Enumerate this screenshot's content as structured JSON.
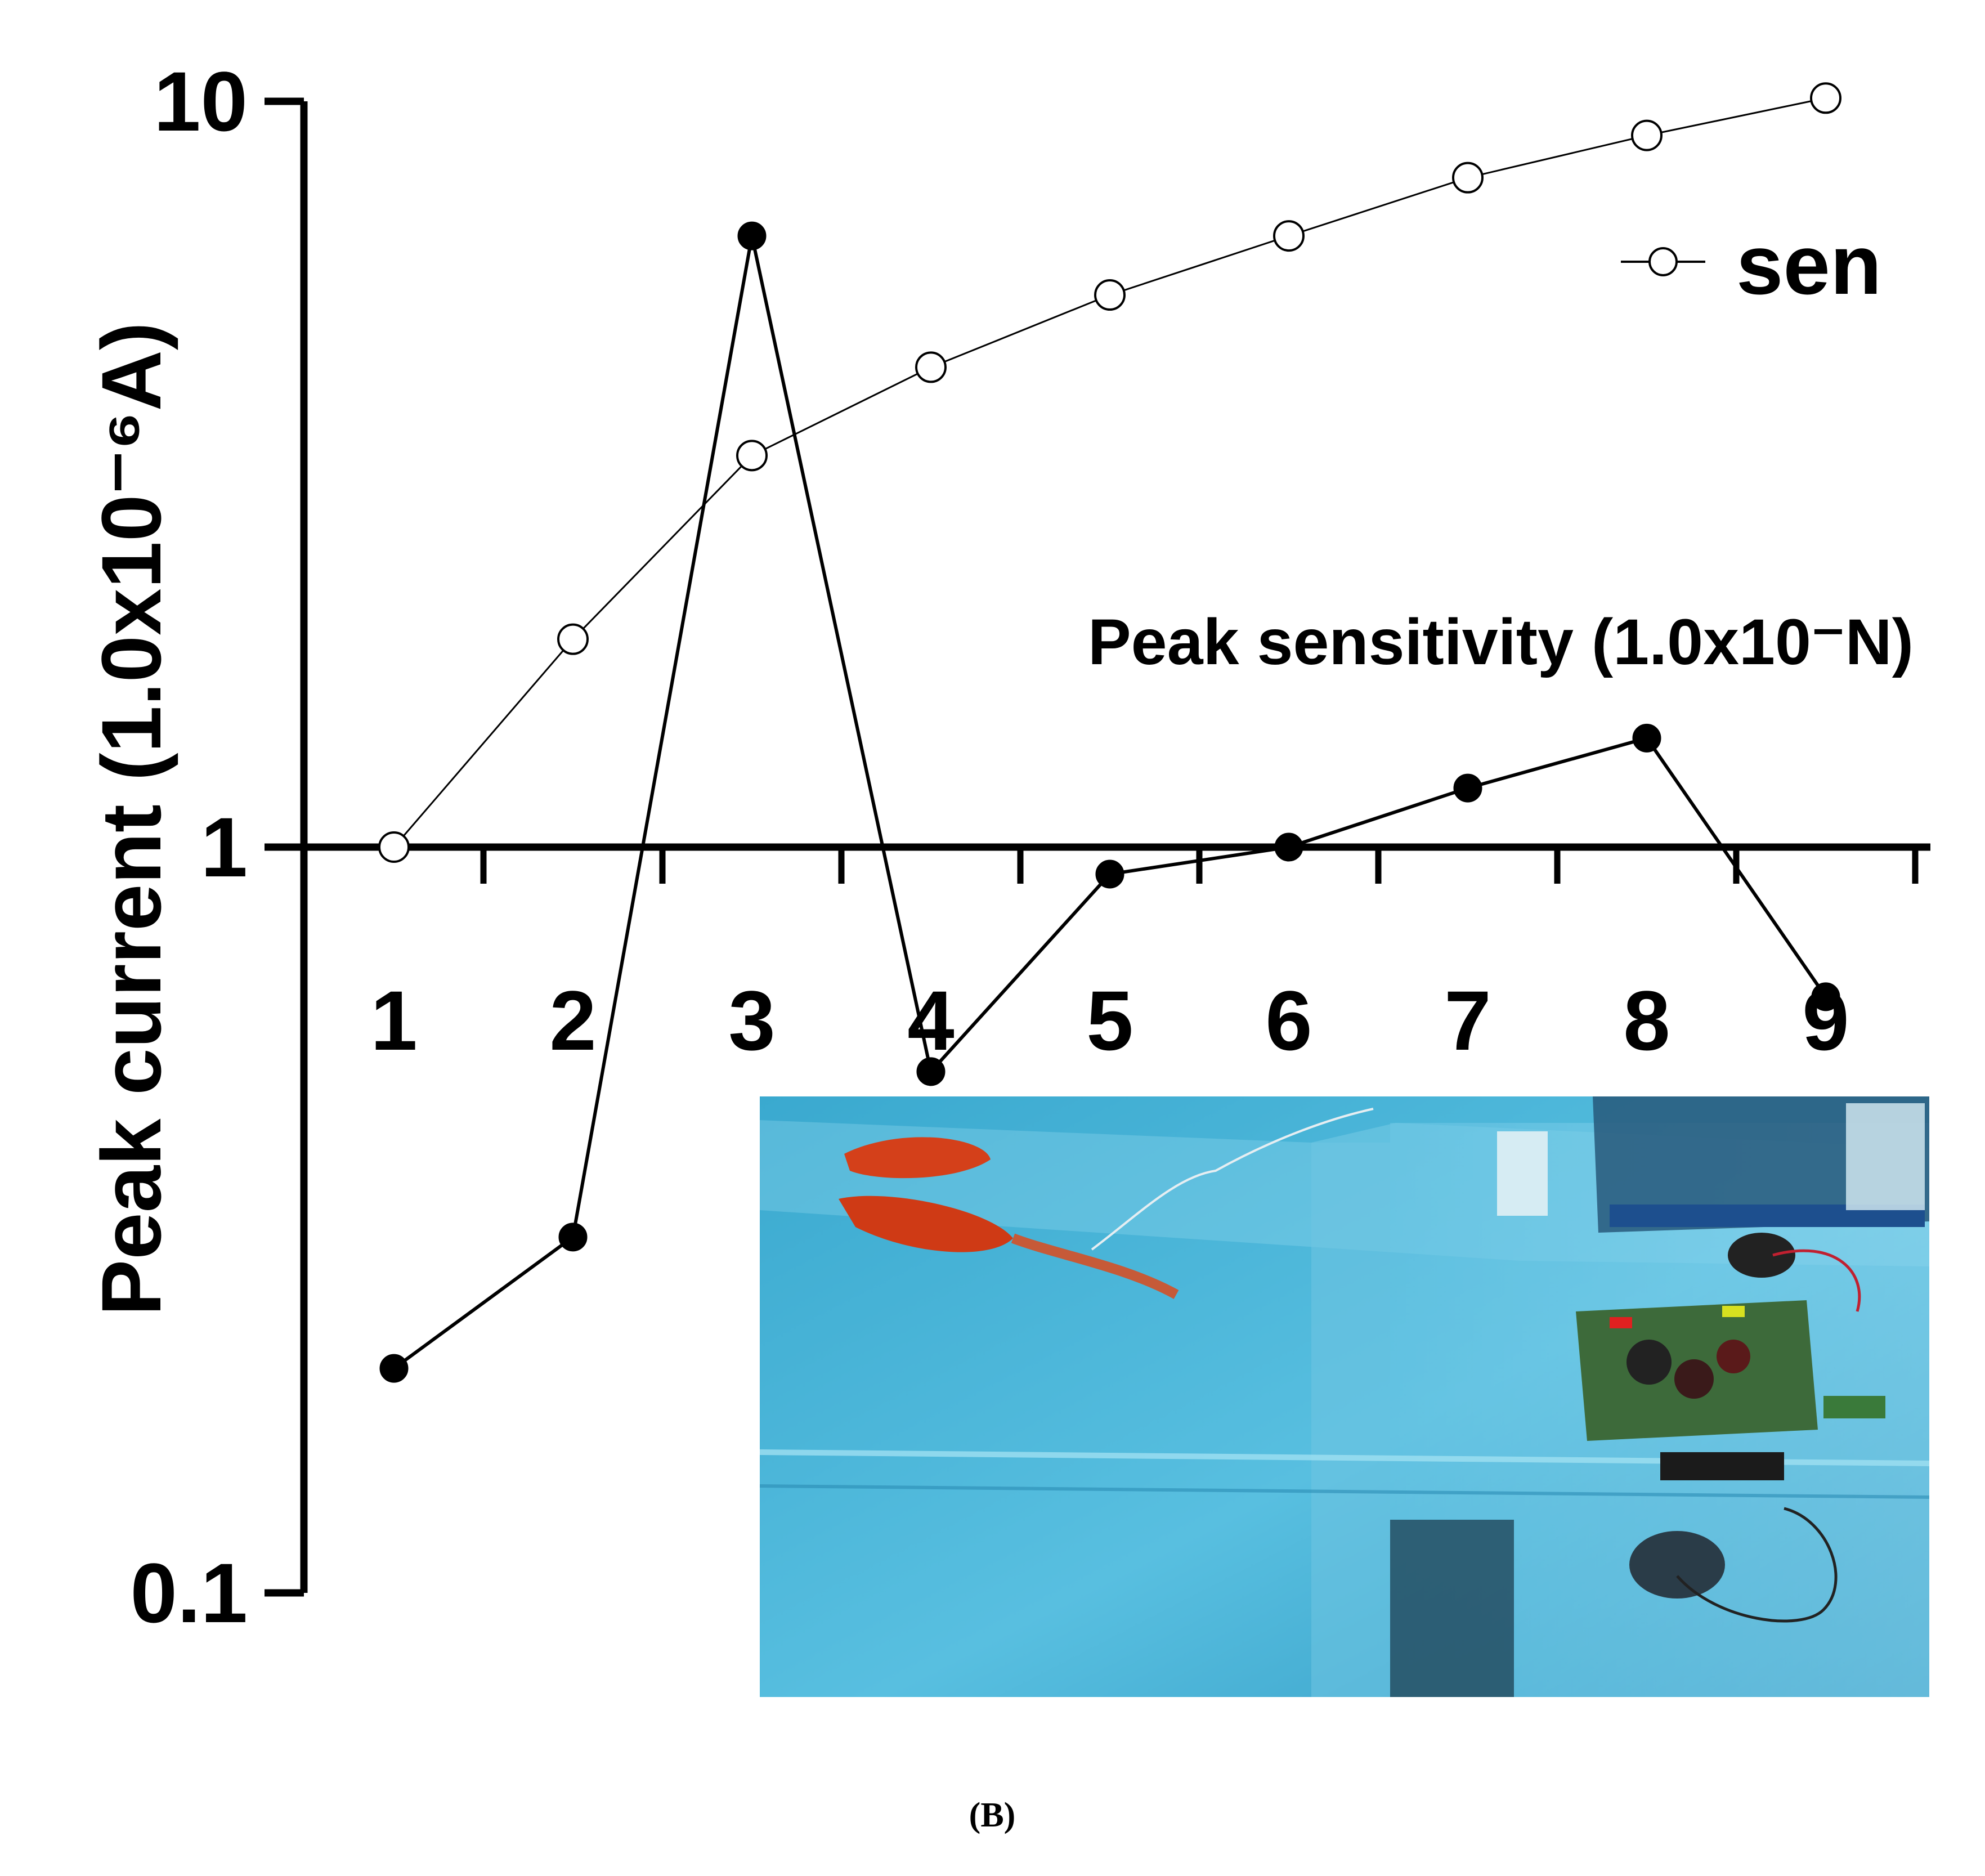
{
  "chart_data": {
    "type": "line",
    "yscale": "log",
    "ylim": [
      0.1,
      10
    ],
    "ylabel": "Peak current (1.0x10⁻⁶A)",
    "x": [
      1,
      2,
      3,
      4,
      5,
      6,
      7,
      8,
      9
    ],
    "y_ticks": [
      "10",
      "1",
      "0.1"
    ],
    "series": [
      {
        "name": "sen",
        "marker": "open-circle",
        "color": "#000000",
        "values": [
          1.0,
          1.9,
          3.35,
          4.4,
          5.5,
          6.6,
          7.9,
          9.0,
          10.1
        ]
      },
      {
        "marker": "filled-circle",
        "color": "#000000",
        "values": [
          0.2,
          0.3,
          6.6,
          0.5,
          0.92,
          1.0,
          1.2,
          1.4,
          0.63
        ]
      }
    ],
    "annotation": "Peak sensitivity (1.0x10⁻N)",
    "legend_position": "top-right",
    "grid": false
  },
  "caption": {
    "open": "(",
    "letter": "B",
    "close": ")"
  },
  "inset_photo": {
    "icon": "aquarium-with-fish-and-circuit-board-photo",
    "colors": {
      "water": "#3aa9cf",
      "fish": "#d4401a",
      "board": "#3d6a3a"
    }
  }
}
